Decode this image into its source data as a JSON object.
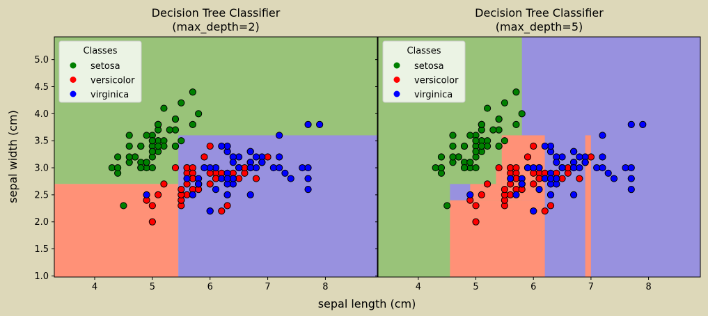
{
  "figure": {
    "xlabel": "sepal length (cm)",
    "ylabel": "sepal width (cm)",
    "background": "#ddd8b9"
  },
  "classes": [
    {
      "name": "setosa",
      "point_color": "#008000",
      "region_color": "#99c379"
    },
    {
      "name": "versicolor",
      "point_color": "#ff0000",
      "region_color": "#ff9177"
    },
    {
      "name": "virginica",
      "point_color": "#0000ff",
      "region_color": "#9891df"
    }
  ],
  "chart_data": [
    {
      "type": "scatter",
      "title": "Decision Tree Classifier\n(max_depth=2)",
      "xlim": [
        3.3,
        8.9
      ],
      "ylim": [
        0.98,
        5.42
      ],
      "xticks": [
        4,
        5,
        6,
        7,
        8
      ],
      "yticks": [
        1.0,
        1.5,
        2.0,
        2.5,
        3.0,
        3.5,
        4.0,
        4.5,
        5.0
      ],
      "grid": false,
      "legend": {
        "title": "Classes",
        "placement": "top-left"
      },
      "regions": [
        {
          "class": "setosa",
          "x": [
            3.3,
            8.9
          ],
          "y": [
            2.7,
            5.42
          ]
        },
        {
          "class": "versicolor",
          "x": [
            3.3,
            5.45
          ],
          "y": [
            0.98,
            2.7
          ]
        },
        {
          "class": "virginica",
          "x": [
            5.45,
            8.9
          ],
          "y": [
            0.98,
            3.6
          ]
        }
      ]
    },
    {
      "type": "scatter",
      "title": "Decision Tree Classifier\n(max_depth=5)",
      "xlim": [
        3.3,
        8.9
      ],
      "ylim": [
        0.98,
        5.42
      ],
      "xticks": [
        4,
        5,
        6,
        7,
        8
      ],
      "yticks": [],
      "grid": false,
      "legend": {
        "title": "Classes",
        "placement": "top-left"
      },
      "regions": [
        {
          "class": "setosa",
          "x": [
            3.3,
            8.9
          ],
          "y": [
            0.98,
            5.42
          ]
        },
        {
          "class": "virginica",
          "x": [
            5.8,
            8.9
          ],
          "y": [
            0.98,
            5.42
          ]
        },
        {
          "class": "versicolor",
          "x": [
            4.55,
            6.2
          ],
          "y": [
            0.98,
            2.4
          ]
        },
        {
          "class": "versicolor",
          "x": [
            5.45,
            6.2
          ],
          "y": [
            2.4,
            3.6
          ]
        },
        {
          "class": "versicolor",
          "x": [
            4.9,
            5.45
          ],
          "y": [
            2.4,
            2.7
          ]
        },
        {
          "class": "versicolor",
          "x": [
            5.35,
            5.45
          ],
          "y": [
            2.7,
            3.0
          ]
        },
        {
          "class": "virginica",
          "x": [
            4.55,
            4.9
          ],
          "y": [
            2.4,
            2.7
          ]
        },
        {
          "class": "virginica",
          "x": [
            6.2,
            6.9
          ],
          "y": [
            0.98,
            3.6
          ]
        },
        {
          "class": "versicolor",
          "x": [
            6.9,
            7.0
          ],
          "y": [
            0.98,
            3.6
          ]
        },
        {
          "class": "virginica",
          "x": [
            7.0,
            8.9
          ],
          "y": [
            0.98,
            3.6
          ]
        }
      ]
    }
  ],
  "points": {
    "setosa": [
      [
        5.1,
        3.5
      ],
      [
        4.9,
        3.0
      ],
      [
        4.7,
        3.2
      ],
      [
        4.6,
        3.1
      ],
      [
        5.0,
        3.6
      ],
      [
        5.4,
        3.9
      ],
      [
        4.6,
        3.4
      ],
      [
        5.0,
        3.4
      ],
      [
        4.4,
        2.9
      ],
      [
        4.9,
        3.1
      ],
      [
        5.4,
        3.7
      ],
      [
        4.8,
        3.4
      ],
      [
        4.8,
        3.0
      ],
      [
        4.3,
        3.0
      ],
      [
        5.8,
        4.0
      ],
      [
        5.7,
        4.4
      ],
      [
        5.4,
        3.9
      ],
      [
        5.1,
        3.5
      ],
      [
        5.7,
        3.8
      ],
      [
        5.1,
        3.8
      ],
      [
        5.4,
        3.4
      ],
      [
        5.1,
        3.7
      ],
      [
        4.6,
        3.6
      ],
      [
        5.1,
        3.3
      ],
      [
        4.8,
        3.4
      ],
      [
        5.0,
        3.0
      ],
      [
        5.0,
        3.4
      ],
      [
        5.2,
        3.5
      ],
      [
        5.2,
        3.4
      ],
      [
        4.7,
        3.2
      ],
      [
        4.8,
        3.1
      ],
      [
        5.4,
        3.4
      ],
      [
        5.2,
        4.1
      ],
      [
        5.5,
        4.2
      ],
      [
        4.9,
        3.1
      ],
      [
        5.0,
        3.2
      ],
      [
        5.5,
        3.5
      ],
      [
        4.9,
        3.6
      ],
      [
        4.4,
        3.0
      ],
      [
        5.1,
        3.4
      ],
      [
        5.0,
        3.5
      ],
      [
        4.5,
        2.3
      ],
      [
        4.4,
        3.2
      ],
      [
        5.0,
        3.5
      ],
      [
        5.1,
        3.8
      ],
      [
        4.8,
        3.0
      ],
      [
        5.1,
        3.8
      ],
      [
        4.6,
        3.2
      ],
      [
        5.3,
        3.7
      ],
      [
        5.0,
        3.3
      ]
    ],
    "versicolor": [
      [
        7.0,
        3.2
      ],
      [
        6.4,
        3.2
      ],
      [
        6.9,
        3.1
      ],
      [
        5.5,
        2.3
      ],
      [
        6.5,
        2.8
      ],
      [
        5.7,
        2.8
      ],
      [
        6.3,
        3.3
      ],
      [
        4.9,
        2.4
      ],
      [
        6.6,
        2.9
      ],
      [
        5.2,
        2.7
      ],
      [
        5.0,
        2.0
      ],
      [
        5.9,
        3.0
      ],
      [
        6.0,
        2.2
      ],
      [
        6.1,
        2.9
      ],
      [
        5.6,
        2.9
      ],
      [
        6.7,
        3.1
      ],
      [
        5.6,
        3.0
      ],
      [
        5.8,
        2.7
      ],
      [
        6.2,
        2.2
      ],
      [
        5.6,
        2.5
      ],
      [
        5.9,
        3.2
      ],
      [
        6.1,
        2.8
      ],
      [
        6.3,
        2.5
      ],
      [
        6.1,
        2.8
      ],
      [
        6.4,
        2.9
      ],
      [
        6.6,
        3.0
      ],
      [
        6.8,
        2.8
      ],
      [
        6.7,
        3.0
      ],
      [
        6.0,
        2.9
      ],
      [
        5.7,
        2.6
      ],
      [
        5.5,
        2.4
      ],
      [
        5.5,
        2.4
      ],
      [
        5.8,
        2.7
      ],
      [
        6.0,
        2.7
      ],
      [
        5.4,
        3.0
      ],
      [
        6.0,
        3.4
      ],
      [
        6.7,
        3.1
      ],
      [
        6.3,
        2.3
      ],
      [
        5.6,
        3.0
      ],
      [
        5.5,
        2.5
      ],
      [
        5.5,
        2.6
      ],
      [
        6.1,
        3.0
      ],
      [
        5.8,
        2.6
      ],
      [
        5.0,
        2.3
      ],
      [
        5.6,
        2.7
      ],
      [
        5.7,
        3.0
      ],
      [
        5.7,
        2.9
      ],
      [
        6.2,
        2.9
      ],
      [
        5.1,
        2.5
      ],
      [
        5.7,
        2.8
      ]
    ],
    "virginica": [
      [
        6.3,
        3.3
      ],
      [
        5.8,
        2.7
      ],
      [
        7.1,
        3.0
      ],
      [
        6.3,
        2.9
      ],
      [
        6.5,
        3.0
      ],
      [
        7.6,
        3.0
      ],
      [
        4.9,
        2.5
      ],
      [
        7.3,
        2.9
      ],
      [
        6.7,
        2.5
      ],
      [
        7.2,
        3.6
      ],
      [
        6.5,
        3.2
      ],
      [
        6.4,
        2.7
      ],
      [
        6.8,
        3.0
      ],
      [
        5.7,
        2.5
      ],
      [
        5.8,
        2.8
      ],
      [
        6.4,
        3.2
      ],
      [
        6.5,
        3.0
      ],
      [
        7.7,
        3.8
      ],
      [
        7.7,
        2.6
      ],
      [
        6.0,
        2.2
      ],
      [
        6.9,
        3.2
      ],
      [
        5.6,
        2.8
      ],
      [
        7.7,
        2.8
      ],
      [
        6.3,
        2.7
      ],
      [
        6.7,
        3.3
      ],
      [
        7.2,
        3.2
      ],
      [
        6.2,
        2.8
      ],
      [
        6.1,
        3.0
      ],
      [
        6.4,
        2.8
      ],
      [
        7.2,
        3.0
      ],
      [
        7.4,
        2.8
      ],
      [
        7.9,
        3.8
      ],
      [
        6.4,
        2.8
      ],
      [
        6.3,
        2.8
      ],
      [
        6.1,
        2.6
      ],
      [
        7.7,
        3.0
      ],
      [
        6.3,
        3.4
      ],
      [
        6.4,
        3.1
      ],
      [
        6.0,
        3.0
      ],
      [
        6.9,
        3.1
      ],
      [
        6.7,
        3.1
      ],
      [
        6.9,
        3.1
      ],
      [
        5.8,
        2.7
      ],
      [
        6.8,
        3.2
      ],
      [
        6.7,
        3.3
      ],
      [
        6.7,
        3.0
      ],
      [
        6.3,
        2.5
      ],
      [
        6.5,
        3.0
      ],
      [
        6.2,
        3.4
      ],
      [
        5.9,
        3.0
      ]
    ]
  }
}
